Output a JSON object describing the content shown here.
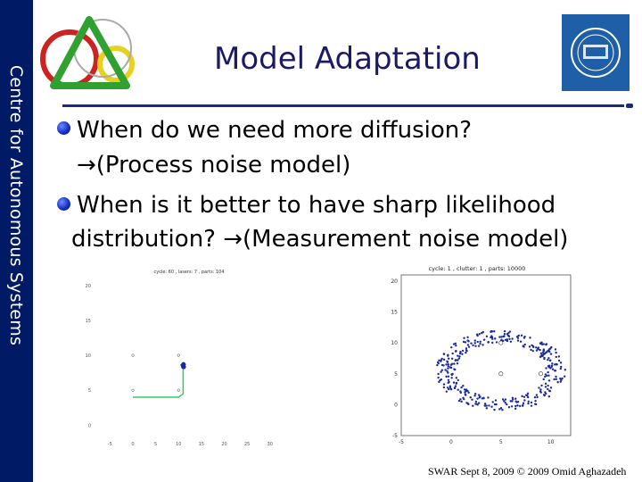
{
  "sidebar": {
    "title": "Centre for Autonomous Systems"
  },
  "slide": {
    "title": "Model Adaptation",
    "bullets": [
      {
        "line1": "When do we need more diffusion?",
        "line2": "→(Process noise model)"
      },
      {
        "line1": "When is it better to have sharp likelihood",
        "line2": "distribution? →(Measurement noise model)"
      }
    ]
  },
  "colors": {
    "sidebar_bg": "#001a66",
    "title": "#1a1a66",
    "kth_blue": "#1f5fa8",
    "accent_rule": "#1a2a80",
    "particles": "#1a2aa0",
    "path": "#33cc66"
  },
  "chart_data": [
    {
      "type": "scatter",
      "title": "cycle: 60 , lasers: 7 , parts: 104",
      "x_ticks": [
        -5,
        0,
        5,
        10,
        15,
        20,
        25,
        30
      ],
      "y_ticks": [
        0,
        5,
        10,
        15,
        20
      ],
      "xlim": [
        -8,
        32
      ],
      "ylim": [
        -2,
        21
      ],
      "landmarks": [
        {
          "x": 0,
          "y": 10
        },
        {
          "x": 10,
          "y": 10
        },
        {
          "x": 0,
          "y": 5
        },
        {
          "x": 10,
          "y": 5
        }
      ],
      "path": [
        {
          "x": 0,
          "y": 4
        },
        {
          "x": 10,
          "y": 4
        },
        {
          "x": 11,
          "y": 4.5
        },
        {
          "x": 11,
          "y": 8.5
        }
      ],
      "particle_cluster": {
        "x": 11,
        "y": 8.5,
        "spread": 0.4
      }
    },
    {
      "type": "scatter",
      "title": "cycle: 1 , clutter: 1 , parts: 10000",
      "x_ticks": [
        -5,
        0,
        5,
        10
      ],
      "y_ticks": [
        -5,
        0,
        5,
        10,
        15,
        20
      ],
      "xlim": [
        -5,
        12
      ],
      "ylim": [
        -5,
        21
      ],
      "landmarks": [
        {
          "x": 5,
          "y": 10
        },
        {
          "x": 5,
          "y": 5
        },
        {
          "x": 9,
          "y": 5
        }
      ],
      "particle_ring": {
        "cx": 5,
        "cy": 5.5,
        "r": 5.5,
        "count": 360
      }
    }
  ],
  "footer": "SWAR Sept 8, 2009 © 2009 Omid Aghazadeh"
}
